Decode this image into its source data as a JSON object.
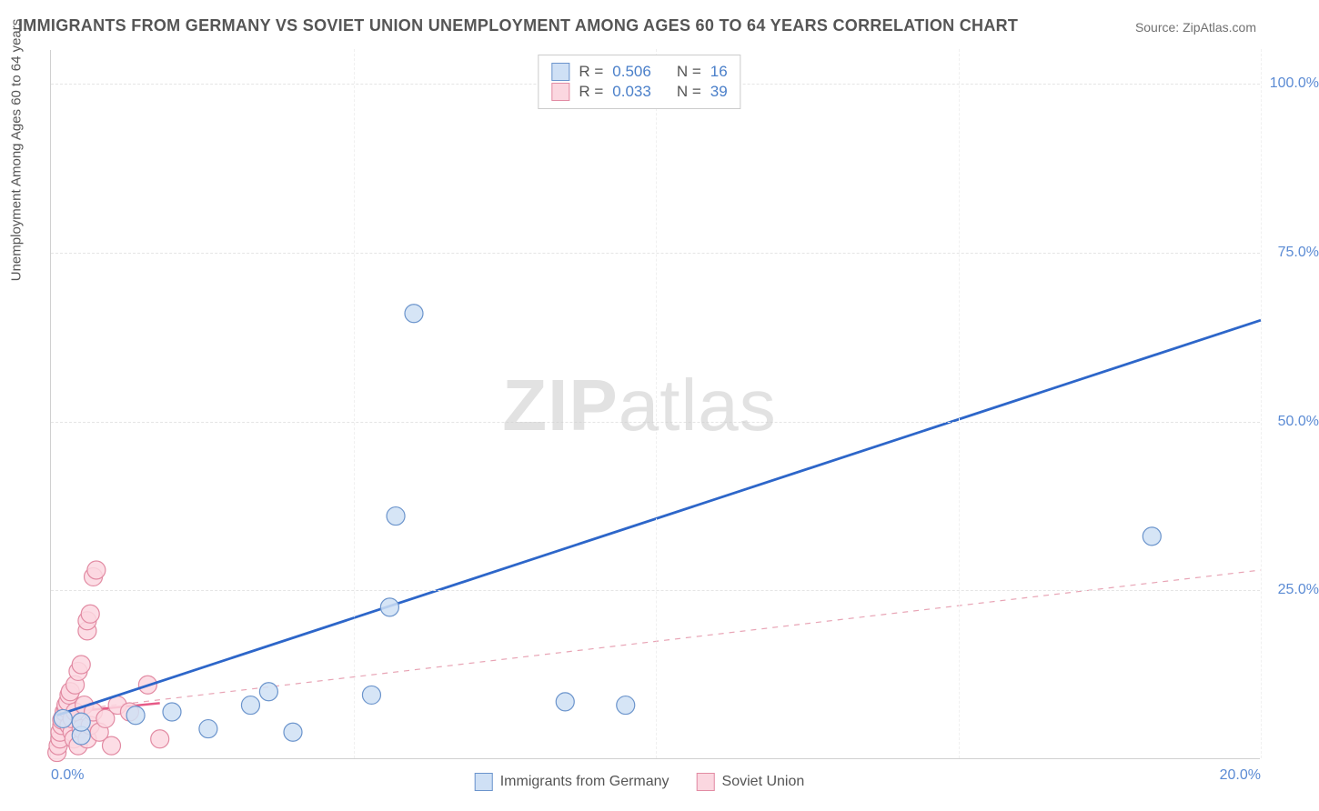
{
  "title": "IMMIGRANTS FROM GERMANY VS SOVIET UNION UNEMPLOYMENT AMONG AGES 60 TO 64 YEARS CORRELATION CHART",
  "source_label": "Source: ZipAtlas.com",
  "y_axis_label": "Unemployment Among Ages 60 to 64 years",
  "watermark_a": "ZIP",
  "watermark_b": "atlas",
  "chart": {
    "type": "scatter",
    "background_color": "#ffffff",
    "grid_color": "#e5e5e5",
    "axis_color": "#d0d0d0",
    "xlim": [
      0,
      20
    ],
    "ylim": [
      0,
      105
    ],
    "x_ticks": [
      0,
      5,
      10,
      15,
      20
    ],
    "x_tick_labels": [
      "0.0%",
      "",
      "",
      "",
      "20.0%"
    ],
    "y_ticks": [
      25,
      50,
      75,
      100
    ],
    "y_tick_labels": [
      "25.0%",
      "50.0%",
      "75.0%",
      "100.0%"
    ],
    "marker_radius": 10,
    "marker_stroke_width": 1.2,
    "line_width_solid": 2.8,
    "line_width_dash": 1.2,
    "series": [
      {
        "name": "Immigrants from Germany",
        "marker_fill": "#cfe0f5",
        "marker_stroke": "#6b94cc",
        "line_color": "#2d66c9",
        "line_style": "solid",
        "R": "0.506",
        "N": "16",
        "trend": {
          "x1": 0.1,
          "y1": 6.5,
          "x2": 20,
          "y2": 65
        },
        "points": [
          {
            "x": 0.2,
            "y": 6.0
          },
          {
            "x": 0.5,
            "y": 3.5
          },
          {
            "x": 0.5,
            "y": 5.5
          },
          {
            "x": 1.4,
            "y": 6.5
          },
          {
            "x": 2.0,
            "y": 7.0
          },
          {
            "x": 2.6,
            "y": 4.5
          },
          {
            "x": 3.3,
            "y": 8.0
          },
          {
            "x": 3.6,
            "y": 10.0
          },
          {
            "x": 4.0,
            "y": 4.0
          },
          {
            "x": 5.3,
            "y": 9.5
          },
          {
            "x": 5.6,
            "y": 22.5
          },
          {
            "x": 5.7,
            "y": 36.0
          },
          {
            "x": 6.0,
            "y": 66.0
          },
          {
            "x": 8.5,
            "y": 8.5
          },
          {
            "x": 9.5,
            "y": 8.0
          },
          {
            "x": 18.2,
            "y": 33.0
          }
        ]
      },
      {
        "name": "Soviet Union",
        "marker_fill": "#fbd7e0",
        "marker_stroke": "#e28ba3",
        "short_line_color": "#e75a87",
        "line_color": "#e8a4b5",
        "line_style": "dashed",
        "R": "0.033",
        "N": "39",
        "trend": {
          "x1": 0.1,
          "y1": 7.0,
          "x2": 20,
          "y2": 28
        },
        "short_trend": {
          "x1": 0.1,
          "y1": 6.8,
          "x2": 1.8,
          "y2": 8.3
        },
        "points": [
          {
            "x": 0.1,
            "y": 1.0
          },
          {
            "x": 0.12,
            "y": 2.0
          },
          {
            "x": 0.15,
            "y": 3.0
          },
          {
            "x": 0.15,
            "y": 4.0
          },
          {
            "x": 0.18,
            "y": 5.0
          },
          {
            "x": 0.18,
            "y": 5.8
          },
          {
            "x": 0.2,
            "y": 6.2
          },
          {
            "x": 0.22,
            "y": 7.0
          },
          {
            "x": 0.25,
            "y": 7.5
          },
          {
            "x": 0.25,
            "y": 8.0
          },
          {
            "x": 0.28,
            "y": 8.5
          },
          {
            "x": 0.3,
            "y": 5.0
          },
          {
            "x": 0.3,
            "y": 9.5
          },
          {
            "x": 0.32,
            "y": 10.0
          },
          {
            "x": 0.35,
            "y": 4.0
          },
          {
            "x": 0.35,
            "y": 6.0
          },
          {
            "x": 0.38,
            "y": 3.0
          },
          {
            "x": 0.4,
            "y": 7.0
          },
          {
            "x": 0.4,
            "y": 11.0
          },
          {
            "x": 0.45,
            "y": 2.0
          },
          {
            "x": 0.45,
            "y": 13.0
          },
          {
            "x": 0.5,
            "y": 4.5
          },
          {
            "x": 0.5,
            "y": 14.0
          },
          {
            "x": 0.55,
            "y": 8.0
          },
          {
            "x": 0.6,
            "y": 3.0
          },
          {
            "x": 0.6,
            "y": 19.0
          },
          {
            "x": 0.6,
            "y": 20.5
          },
          {
            "x": 0.65,
            "y": 5.0
          },
          {
            "x": 0.65,
            "y": 21.5
          },
          {
            "x": 0.7,
            "y": 7.0
          },
          {
            "x": 0.7,
            "y": 27.0
          },
          {
            "x": 0.75,
            "y": 28.0
          },
          {
            "x": 0.8,
            "y": 4.0
          },
          {
            "x": 0.9,
            "y": 6.0
          },
          {
            "x": 1.0,
            "y": 2.0
          },
          {
            "x": 1.1,
            "y": 8.0
          },
          {
            "x": 1.3,
            "y": 7.0
          },
          {
            "x": 1.6,
            "y": 11.0
          },
          {
            "x": 1.8,
            "y": 3.0
          }
        ]
      }
    ]
  },
  "legend_top": {
    "rows": [
      {
        "swatch_fill": "#cfe0f5",
        "swatch_stroke": "#6b94cc",
        "R_label": "R =",
        "R_val": "0.506",
        "N_label": "N =",
        "N_val": "16"
      },
      {
        "swatch_fill": "#fbd7e0",
        "swatch_stroke": "#e28ba3",
        "R_label": "R =",
        "R_val": "0.033",
        "N_label": "N =",
        "N_val": "39"
      }
    ]
  },
  "legend_bottom": {
    "items": [
      {
        "swatch_fill": "#cfe0f5",
        "swatch_stroke": "#6b94cc",
        "label": "Immigrants from Germany"
      },
      {
        "swatch_fill": "#fbd7e0",
        "swatch_stroke": "#e28ba3",
        "label": "Soviet Union"
      }
    ]
  }
}
